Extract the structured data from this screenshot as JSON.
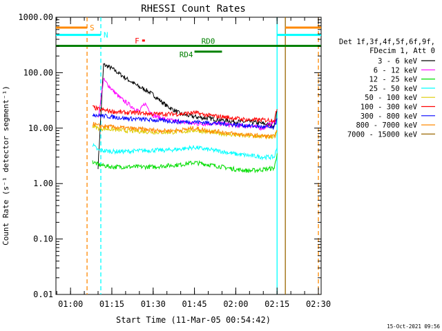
{
  "chart_data": {
    "type": "line",
    "title": "RHESSI Count Rates",
    "xlabel": "Start Time (11-Mar-05 00:54:42)",
    "ylabel": "Count Rate (s⁻¹ detector segment⁻¹)",
    "y_scale": "log",
    "ylim": [
      0.01,
      1000
    ],
    "xlim": [
      "00:54:42",
      "02:31:00"
    ],
    "grid": false,
    "y_ticks": [
      "1000.00",
      "100.00",
      "10.00",
      "1.00",
      "0.10",
      "0.01"
    ],
    "x_ticks": [
      "01:00",
      "01:15",
      "01:30",
      "01:45",
      "02:00",
      "02:15",
      "02:30"
    ],
    "legend_position": "right",
    "legend_header": [
      "Det 1f,3f,4f,5f,6f,9f,",
      "FDecim 1, Att 0"
    ],
    "footer_date": "15-Oct-2021 09:56",
    "series": [
      {
        "name": "3 - 6 keV",
        "color": "#000000",
        "x": [
          "01:10",
          "01:12",
          "01:15",
          "01:20",
          "01:25",
          "01:27",
          "01:30",
          "01:35",
          "01:40",
          "01:45",
          "01:50",
          "01:55",
          "02:00",
          "02:05",
          "02:10",
          "02:14",
          "02:15"
        ],
        "y": [
          2.0,
          140,
          120,
          80,
          55,
          50,
          40,
          25,
          18,
          16,
          15,
          14,
          13,
          13,
          12,
          11,
          20
        ]
      },
      {
        "name": "6 - 12 keV",
        "color": "#ff00ff",
        "x": [
          "01:10",
          "01:12",
          "01:15",
          "01:18",
          "01:22",
          "01:25",
          "01:27",
          "01:30",
          "01:35",
          "01:40",
          "01:45",
          "01:50",
          "01:55",
          "02:00",
          "02:05",
          "02:10",
          "02:15"
        ],
        "y": [
          15,
          75,
          50,
          35,
          25,
          20,
          28,
          17,
          14,
          13,
          12,
          12,
          12,
          11,
          11,
          10,
          14
        ]
      },
      {
        "name": "12 - 25 keV",
        "color": "#00dd00",
        "x": [
          "01:08",
          "01:10",
          "01:15",
          "01:20",
          "01:25",
          "01:30",
          "01:35",
          "01:40",
          "01:45",
          "01:50",
          "01:55",
          "02:00",
          "02:05",
          "02:10",
          "02:14",
          "02:15"
        ],
        "y": [
          2.5,
          2.2,
          2.0,
          2.0,
          2.0,
          2.0,
          2.1,
          2.2,
          2.4,
          2.2,
          2.0,
          1.8,
          1.7,
          1.8,
          1.9,
          3.5
        ]
      },
      {
        "name": "25 - 50 keV",
        "color": "#00ffff",
        "x": [
          "01:08",
          "01:10",
          "01:15",
          "01:20",
          "01:25",
          "01:30",
          "01:35",
          "01:40",
          "01:45",
          "01:50",
          "01:55",
          "02:00",
          "02:05",
          "02:10",
          "02:14",
          "02:15"
        ],
        "y": [
          5.0,
          4.0,
          3.8,
          3.8,
          3.9,
          4.0,
          4.0,
          4.2,
          4.5,
          4.1,
          3.8,
          3.4,
          3.2,
          3.0,
          3.0,
          4.5
        ]
      },
      {
        "name": "50 - 100 keV",
        "color": "#ddcc00",
        "x": [
          "01:08",
          "01:10",
          "01:15",
          "01:20",
          "01:25",
          "01:30",
          "01:35",
          "01:40",
          "01:45",
          "01:50",
          "01:55",
          "02:00",
          "02:05",
          "02:10",
          "02:14",
          "02:15"
        ],
        "y": [
          11,
          10,
          9.5,
          9.0,
          8.8,
          8.5,
          8.4,
          8.6,
          9.2,
          8.5,
          8.0,
          7.5,
          7.2,
          7.0,
          7.0,
          9.0
        ]
      },
      {
        "name": "100 - 300 keV",
        "color": "#ff0000",
        "x": [
          "01:08",
          "01:10",
          "01:15",
          "01:20",
          "01:25",
          "01:30",
          "01:35",
          "01:40",
          "01:45",
          "01:50",
          "01:55",
          "02:00",
          "02:05",
          "02:10",
          "02:14",
          "02:15"
        ],
        "y": [
          24,
          22,
          20,
          19,
          19,
          18,
          18,
          18,
          19,
          17,
          16,
          15,
          14,
          14,
          14,
          22
        ]
      },
      {
        "name": "300 - 800 keV",
        "color": "#0000ff",
        "x": [
          "01:08",
          "01:10",
          "01:15",
          "01:20",
          "01:25",
          "01:30",
          "01:35",
          "01:40",
          "01:45",
          "01:50",
          "01:55",
          "02:00",
          "02:05",
          "02:10",
          "02:14",
          "02:15"
        ],
        "y": [
          18,
          17,
          16,
          15,
          14.5,
          14,
          13.5,
          13,
          13,
          12.5,
          12,
          11.5,
          11,
          10.5,
          10,
          15
        ]
      },
      {
        "name": "800 - 7000 keV",
        "color": "#ff8800",
        "x": [
          "01:08",
          "01:10",
          "01:15",
          "01:20",
          "01:25",
          "01:30",
          "01:35",
          "01:40",
          "01:45",
          "01:50",
          "01:55",
          "02:00",
          "02:05",
          "02:10",
          "02:14",
          "02:15"
        ],
        "y": [
          12,
          11,
          10.5,
          10,
          9.6,
          9.2,
          9.0,
          9.2,
          10,
          9.0,
          8.5,
          7.8,
          7.5,
          7.2,
          7.0,
          9.0
        ]
      },
      {
        "name": "7000 - 15000 keV",
        "color": "#996600",
        "x": [],
        "y": []
      }
    ],
    "annotations": [
      {
        "text": "S",
        "color": "#ff8800",
        "segments": [
          [
            "00:54:42",
            "01:06"
          ],
          [
            "02:18",
            "02:31"
          ]
        ],
        "y": 650
      },
      {
        "text": "N",
        "color": "#00ffff",
        "segments": [
          [
            "00:54:42",
            "01:11"
          ],
          [
            "02:15",
            "02:31"
          ]
        ],
        "y": 480
      },
      {
        "text": "F",
        "color": "#ff0000",
        "segments": [
          [
            "01:26",
            "01:27"
          ]
        ],
        "y": 380
      },
      {
        "text": "RD0",
        "color": "#008000",
        "segments": [
          [
            "00:54:42",
            "02:31"
          ]
        ],
        "y": 305
      },
      {
        "text": "RD4",
        "color": "#008000",
        "segments": [
          [
            "01:45",
            "01:55"
          ]
        ],
        "y": 240
      }
    ],
    "vertical_lines": [
      {
        "x": "01:06",
        "color": "#ff8800",
        "style": "dashed"
      },
      {
        "x": "01:11",
        "color": "#00ffff",
        "style": "dashed"
      },
      {
        "x": "02:15",
        "color": "#00ffff",
        "style": "solid"
      },
      {
        "x": "02:18",
        "color": "#996600",
        "style": "solid"
      },
      {
        "x": "02:30",
        "color": "#ff8800",
        "style": "dashed"
      }
    ]
  }
}
